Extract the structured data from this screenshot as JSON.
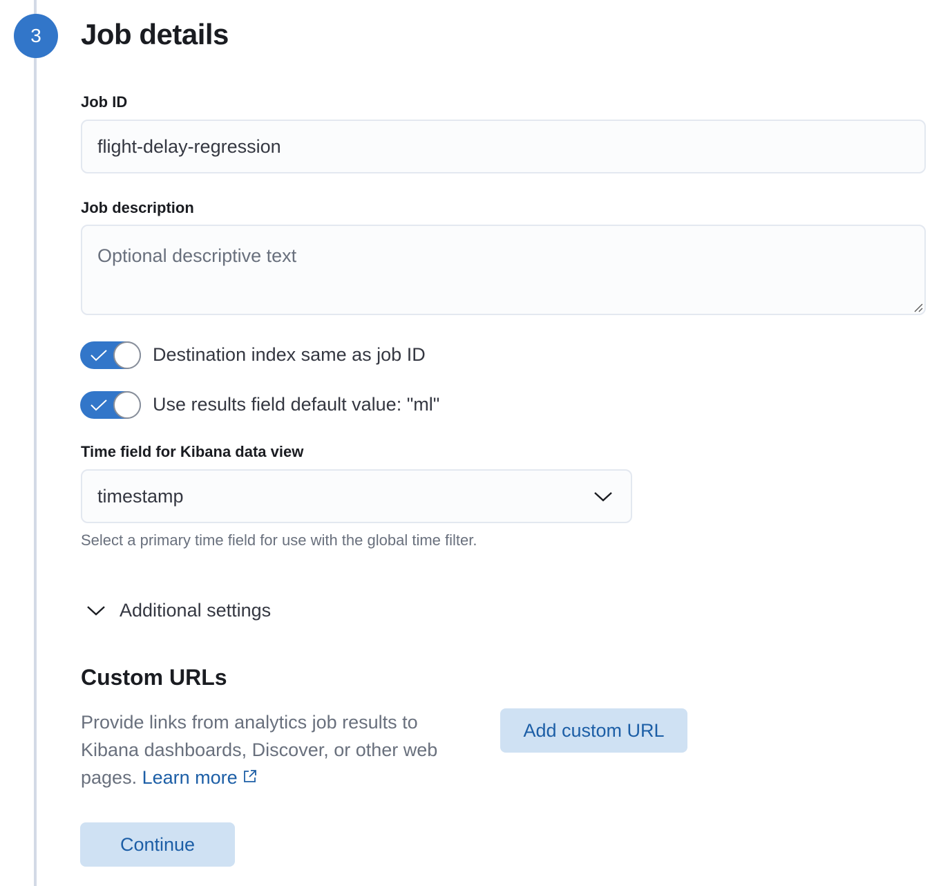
{
  "step": {
    "number": "3",
    "title": "Job details"
  },
  "job_id": {
    "label": "Job ID",
    "value": "flight-delay-regression"
  },
  "job_description": {
    "label": "Job description",
    "placeholder": "Optional descriptive text"
  },
  "toggles": [
    {
      "label": "Destination index same as job ID",
      "checked": true
    },
    {
      "label": "Use results field default value: \"ml\"",
      "checked": true
    }
  ],
  "time_field": {
    "label": "Time field for Kibana data view",
    "value": "timestamp",
    "help": "Select a primary time field for use with the global time filter."
  },
  "additional_settings": {
    "label": "Additional settings",
    "icon": "chevron-down-icon"
  },
  "custom_urls": {
    "title": "Custom URLs",
    "description": "Provide links from analytics job results to Kibana dashboards, Discover, or other web pages.",
    "learn_more": "Learn more",
    "add_button": "Add custom URL"
  },
  "continue_button": "Continue",
  "colors": {
    "accent": "#3276c9",
    "button_bg": "#cfe1f3",
    "button_text": "#1c5ea6"
  }
}
